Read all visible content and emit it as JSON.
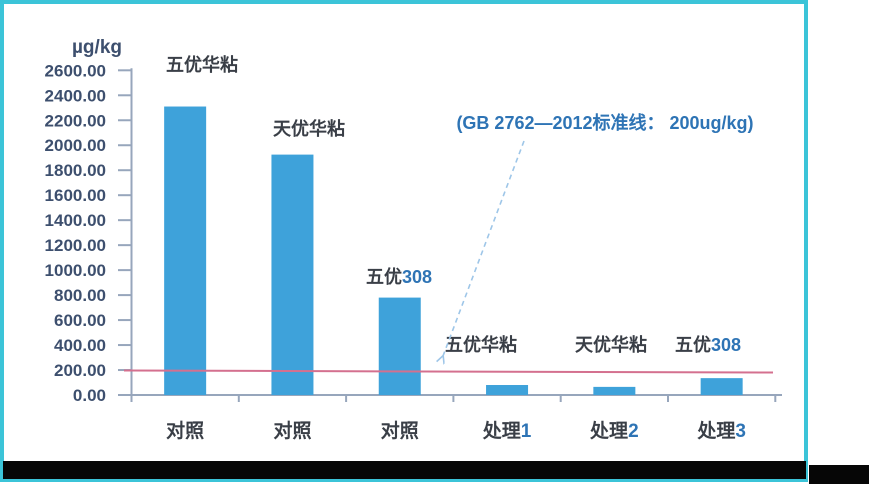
{
  "page": {
    "background_color": "#ffffff",
    "frame_border_color": "#3bc4d8",
    "footer_bar_color": "#060606"
  },
  "chart_data": {
    "type": "bar",
    "title": "",
    "unit_label": "µg/kg",
    "categories": [
      "对照",
      "对照",
      "对照",
      "处理1",
      "处理2",
      "处理3"
    ],
    "point_labels": [
      "五优华粘",
      "天优华粘",
      "五优308",
      "五优华粘",
      "天优华粘",
      "五优308"
    ],
    "values": [
      2310,
      1925,
      780,
      80,
      65,
      135
    ],
    "ylim": [
      0,
      2600
    ],
    "ytick_step": 200,
    "ytick_labels": [
      "0.00",
      "200.00",
      "400.00",
      "600.00",
      "800.00",
      "1000.00",
      "1200.00",
      "1400.00",
      "1600.00",
      "1800.00",
      "2000.00",
      "2200.00",
      "2400.00",
      "2600.00"
    ],
    "grid": false,
    "legend": false,
    "bar_color": "#3ea2da",
    "axis_color": "#97a6bc",
    "ytick_label_color": "#3d4f6e",
    "category_label_color": "#3a3f47",
    "point_label_color": "#3a3f47",
    "digit_color": "#2e74b5",
    "reference_line": {
      "value": 200,
      "color": "#d4708f",
      "annotation": "(GB 2762—2012标准线： 200ug/kg)",
      "annotation_color": "#2e74b5",
      "arrow_color": "#9ec6e8"
    }
  }
}
